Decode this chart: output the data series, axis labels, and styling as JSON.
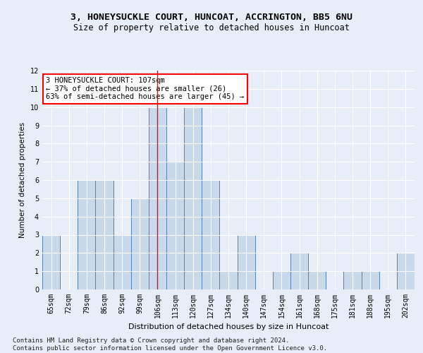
{
  "title1": "3, HONEYSUCKLE COURT, HUNCOAT, ACCRINGTON, BB5 6NU",
  "title2": "Size of property relative to detached houses in Huncoat",
  "xlabel": "Distribution of detached houses by size in Huncoat",
  "ylabel": "Number of detached properties",
  "categories": [
    "65sqm",
    "72sqm",
    "79sqm",
    "86sqm",
    "92sqm",
    "99sqm",
    "106sqm",
    "113sqm",
    "120sqm",
    "127sqm",
    "134sqm",
    "140sqm",
    "147sqm",
    "154sqm",
    "161sqm",
    "168sqm",
    "175sqm",
    "181sqm",
    "188sqm",
    "195sqm",
    "202sqm"
  ],
  "values": [
    3,
    0,
    6,
    6,
    3,
    5,
    10,
    7,
    10,
    6,
    1,
    3,
    0,
    1,
    2,
    1,
    0,
    1,
    1,
    0,
    2
  ],
  "bar_color": "#c9d9ec",
  "bar_edge_color": "#5580b0",
  "highlight_index": 6,
  "highlight_line_color": "red",
  "annotation_text": "3 HONEYSUCKLE COURT: 107sqm\n← 37% of detached houses are smaller (26)\n63% of semi-detached houses are larger (45) →",
  "annotation_box_color": "white",
  "annotation_box_edge": "red",
  "ylim": [
    0,
    12
  ],
  "yticks": [
    0,
    1,
    2,
    3,
    4,
    5,
    6,
    7,
    8,
    9,
    10,
    11,
    12
  ],
  "footnote": "Contains HM Land Registry data © Crown copyright and database right 2024.\nContains public sector information licensed under the Open Government Licence v3.0.",
  "bg_color": "#e8eef8",
  "grid_color": "#ffffff",
  "title1_fontsize": 9.5,
  "title2_fontsize": 8.5,
  "xlabel_fontsize": 8,
  "ylabel_fontsize": 7.5,
  "tick_fontsize": 7,
  "annotation_fontsize": 7.5,
  "footnote_fontsize": 6.5
}
